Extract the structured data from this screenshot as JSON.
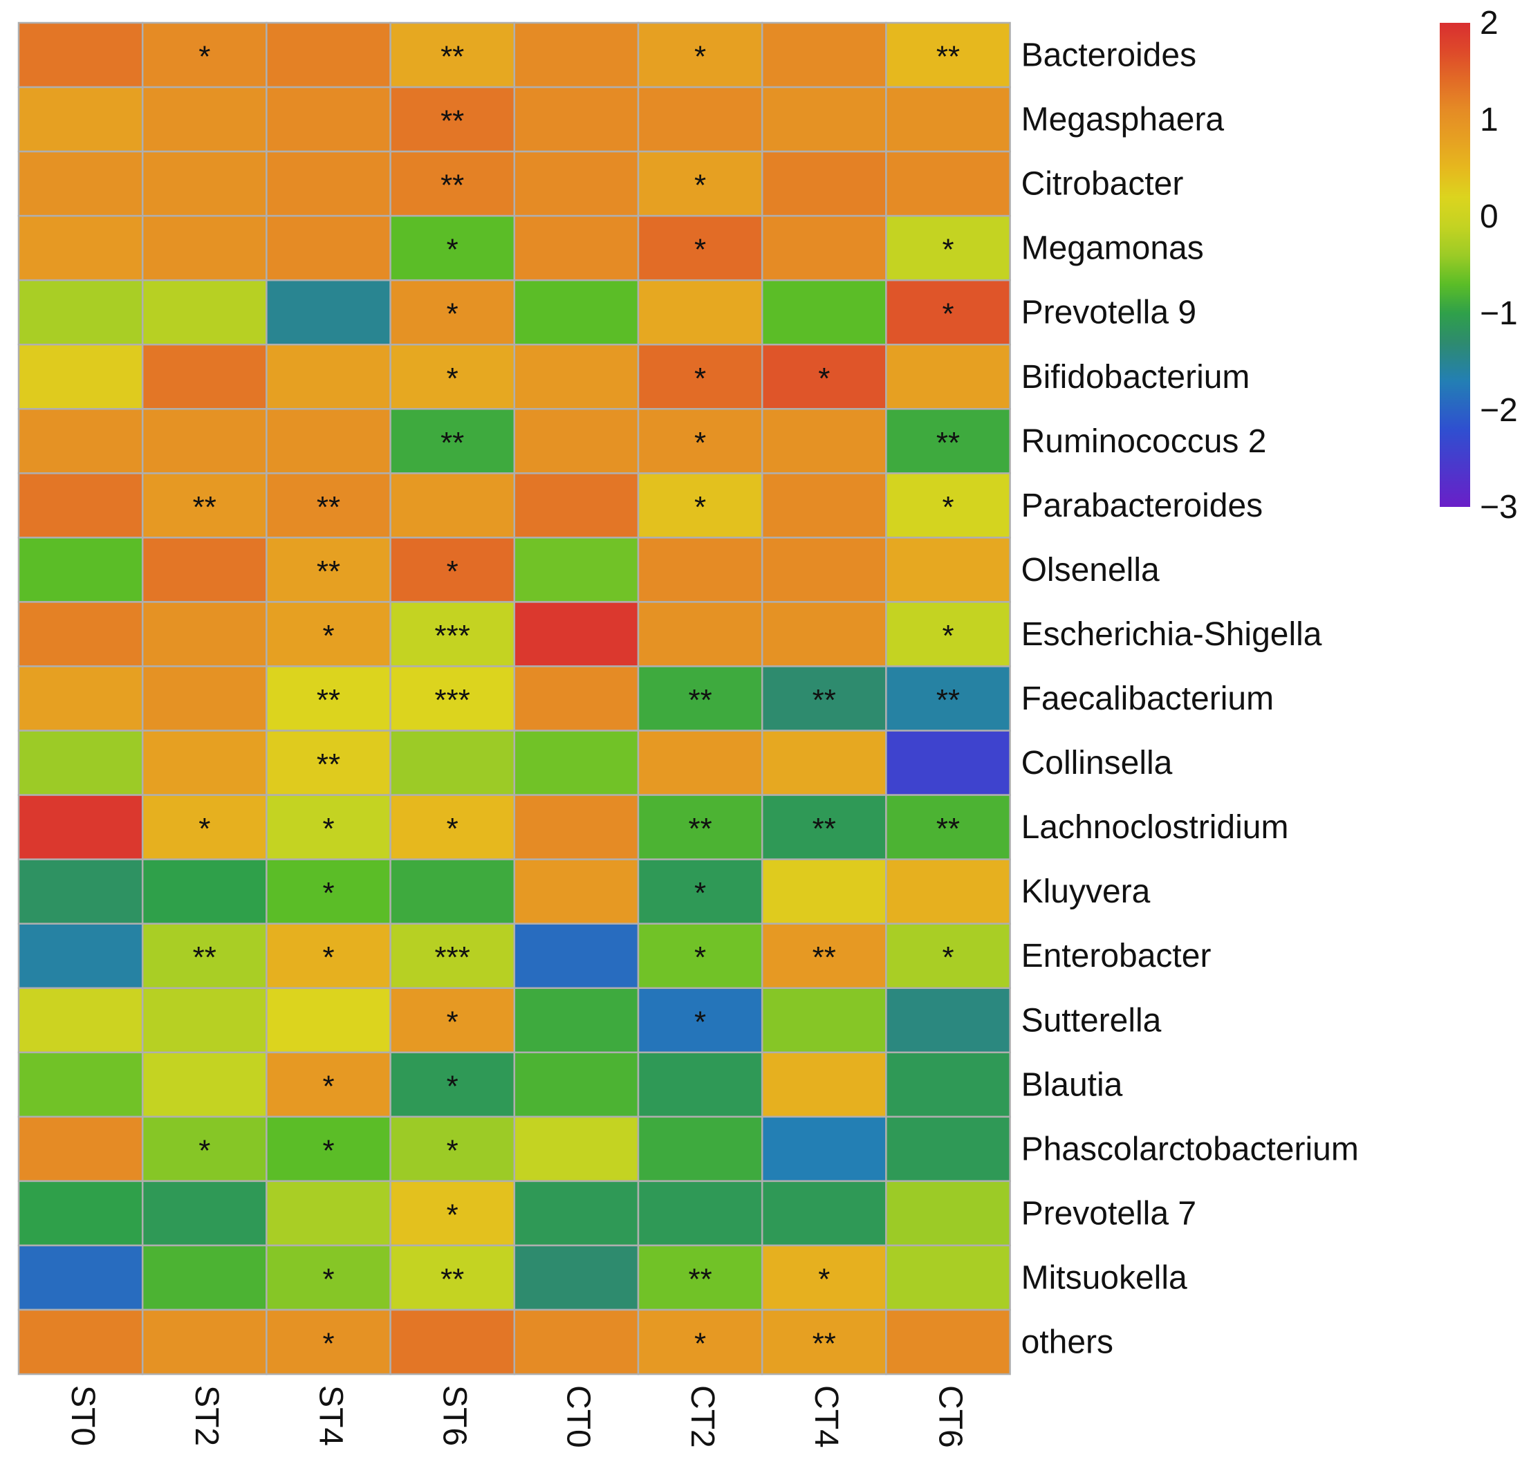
{
  "chart_data": {
    "type": "heatmap",
    "title": "",
    "columns": [
      "ST0",
      "ST2",
      "ST4",
      "ST6",
      "CT0",
      "CT2",
      "CT4",
      "CT6"
    ],
    "rows": [
      "Bacteroides",
      "Megasphaera",
      "Citrobacter",
      "Megamonas",
      "Prevotella 9",
      "Bifidobacterium",
      "Ruminococcus 2",
      "Parabacteroides",
      "Olsenella",
      "Escherichia-Shigella",
      "Faecalibacterium",
      "Collinsella",
      "Lachnoclostridium",
      "Kluyvera",
      "Enterobacter",
      "Sutterella",
      "Blautia",
      "Phascolarctobacterium",
      "Prevotella 7",
      "Mitsuokella",
      "others"
    ],
    "values": [
      [
        1.3,
        1.1,
        1.2,
        0.7,
        1.1,
        0.8,
        1.1,
        0.5
      ],
      [
        0.8,
        1.0,
        1.1,
        1.3,
        1.1,
        1.1,
        1.0,
        1.0
      ],
      [
        1.0,
        1.0,
        1.1,
        1.2,
        1.1,
        0.8,
        1.2,
        1.1
      ],
      [
        0.9,
        1.0,
        1.1,
        -0.7,
        1.1,
        1.4,
        1.1,
        -0.1
      ],
      [
        -0.3,
        -0.2,
        -1.5,
        1.0,
        -0.7,
        0.7,
        -0.7,
        1.6
      ],
      [
        0.3,
        1.3,
        0.8,
        0.7,
        0.9,
        1.4,
        1.6,
        0.8
      ],
      [
        1.0,
        1.0,
        1.0,
        -0.9,
        1.0,
        1.0,
        1.0,
        -0.9
      ],
      [
        1.3,
        0.9,
        1.1,
        0.9,
        1.3,
        0.4,
        1.1,
        0.1
      ],
      [
        -0.7,
        1.3,
        0.8,
        1.4,
        -0.6,
        1.1,
        1.1,
        0.7
      ],
      [
        1.2,
        1.0,
        0.8,
        -0.1,
        1.9,
        1.0,
        1.0,
        -0.1
      ],
      [
        0.8,
        1.0,
        0.2,
        0.2,
        1.1,
        -0.9,
        -1.3,
        -1.6
      ],
      [
        -0.4,
        0.8,
        0.3,
        -0.4,
        -0.6,
        0.9,
        0.7,
        -2.4
      ],
      [
        1.9,
        0.6,
        -0.1,
        0.5,
        1.1,
        -0.8,
        -1.1,
        -0.8
      ],
      [
        -1.2,
        -1.0,
        -0.7,
        -0.9,
        0.9,
        -1.1,
        0.3,
        0.6
      ],
      [
        -1.6,
        -0.3,
        0.6,
        -0.2,
        -1.9,
        -0.6,
        0.9,
        -0.3
      ],
      [
        0.0,
        -0.2,
        0.2,
        0.9,
        -0.9,
        -1.8,
        -0.5,
        -1.4
      ],
      [
        -0.6,
        -0.1,
        0.9,
        -1.1,
        -0.8,
        -1.1,
        0.6,
        -1.1
      ],
      [
        1.1,
        -0.5,
        -0.7,
        -0.4,
        -0.1,
        -0.9,
        -1.7,
        -1.1
      ],
      [
        -1.0,
        -1.1,
        -0.3,
        0.4,
        -1.1,
        -1.1,
        -1.1,
        -0.4
      ],
      [
        -1.9,
        -0.8,
        -0.5,
        -0.1,
        -1.3,
        -0.6,
        0.6,
        -0.3
      ],
      [
        1.2,
        1.0,
        1.0,
        1.3,
        1.1,
        0.9,
        0.8,
        1.1
      ]
    ],
    "significance": [
      [
        "",
        "*",
        "",
        "**",
        "",
        "*",
        "",
        "**"
      ],
      [
        "",
        "",
        "",
        "**",
        "",
        "",
        "",
        ""
      ],
      [
        "",
        "",
        "",
        "**",
        "",
        "*",
        "",
        ""
      ],
      [
        "",
        "",
        "",
        "*",
        "",
        "*",
        "",
        "*"
      ],
      [
        "",
        "",
        "",
        "*",
        "",
        "",
        "",
        "*"
      ],
      [
        "",
        "",
        "",
        "*",
        "",
        "*",
        "*",
        ""
      ],
      [
        "",
        "",
        "",
        "**",
        "",
        "*",
        "",
        "**"
      ],
      [
        "",
        "**",
        "**",
        "",
        "",
        "*",
        "",
        "*"
      ],
      [
        "",
        "",
        "**",
        "*",
        "",
        "",
        "",
        ""
      ],
      [
        "",
        "",
        "*",
        "***",
        "",
        "",
        "",
        "*"
      ],
      [
        "",
        "",
        "**",
        "***",
        "",
        "**",
        "**",
        "**"
      ],
      [
        "",
        "",
        "**",
        "",
        "",
        "",
        "",
        ""
      ],
      [
        "",
        "*",
        "*",
        "*",
        "",
        "**",
        "**",
        "**"
      ],
      [
        "",
        "",
        "*",
        "",
        "",
        "*",
        "",
        ""
      ],
      [
        "",
        "**",
        "*",
        "***",
        "",
        "*",
        "**",
        "*"
      ],
      [
        "",
        "",
        "",
        "*",
        "",
        "*",
        "",
        ""
      ],
      [
        "",
        "",
        "*",
        "*",
        "",
        "",
        "",
        ""
      ],
      [
        "",
        "*",
        "*",
        "*",
        "",
        "",
        "",
        ""
      ],
      [
        "",
        "",
        "",
        "*",
        "",
        "",
        "",
        ""
      ],
      [
        "",
        "",
        "*",
        "**",
        "",
        "**",
        "*",
        ""
      ],
      [
        "",
        "",
        "*",
        "",
        "",
        "*",
        "**",
        ""
      ]
    ],
    "color_scale": {
      "range": [
        -3,
        2
      ],
      "ticks": [
        "2",
        "1",
        "0",
        "−1",
        "−2",
        "−3"
      ],
      "stops": [
        {
          "value": -3.0,
          "color": "#6A1FC8"
        },
        {
          "value": -2.2,
          "color": "#2F4FD0"
        },
        {
          "value": -1.7,
          "color": "#237FB4"
        },
        {
          "value": -1.3,
          "color": "#2E8B6E"
        },
        {
          "value": -1.0,
          "color": "#2FA04A"
        },
        {
          "value": -0.7,
          "color": "#5BBD27"
        },
        {
          "value": -0.4,
          "color": "#9CCB26"
        },
        {
          "value": -0.1,
          "color": "#C4D322"
        },
        {
          "value": 0.2,
          "color": "#DCD41E"
        },
        {
          "value": 0.5,
          "color": "#E6B81E"
        },
        {
          "value": 0.8,
          "color": "#E6A022"
        },
        {
          "value": 1.1,
          "color": "#E58B25"
        },
        {
          "value": 1.4,
          "color": "#E26C26"
        },
        {
          "value": 1.7,
          "color": "#DE4A2A"
        },
        {
          "value": 2.0,
          "color": "#D92F30"
        }
      ]
    },
    "grid_color": "#AFAFAF",
    "text_color": "#111111"
  }
}
